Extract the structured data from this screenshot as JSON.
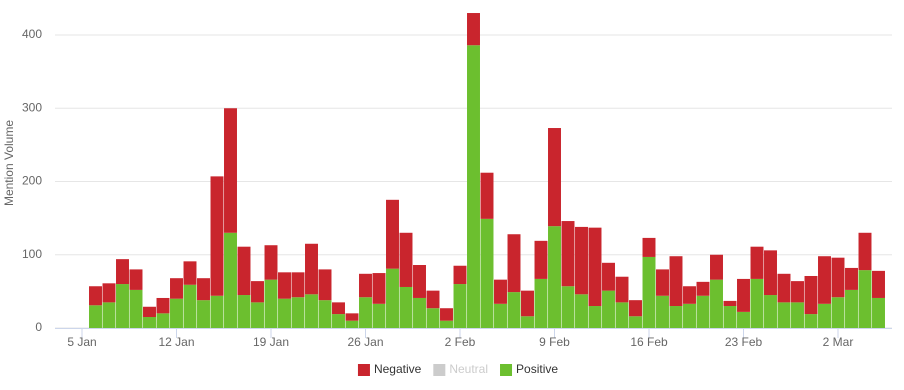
{
  "chart_data": {
    "type": "stacked-bar",
    "y_label": "Mention Volume",
    "x": [
      "6 Jan",
      "7 Jan",
      "8 Jan",
      "9 Jan",
      "10 Jan",
      "11 Jan",
      "12 Jan",
      "13 Jan",
      "14 Jan",
      "15 Jan",
      "16 Jan",
      "17 Jan",
      "18 Jan",
      "19 Jan",
      "20 Jan",
      "21 Jan",
      "22 Jan",
      "23 Jan",
      "24 Jan",
      "25 Jan",
      "26 Jan",
      "27 Jan",
      "28 Jan",
      "29 Jan",
      "30 Jan",
      "31 Jan",
      "1 Feb",
      "2 Feb",
      "3 Feb",
      "4 Feb",
      "5 Feb",
      "6 Feb",
      "7 Feb",
      "8 Feb",
      "9 Feb",
      "10 Feb",
      "11 Feb",
      "12 Feb",
      "13 Feb",
      "14 Feb",
      "15 Feb",
      "16 Feb",
      "17 Feb",
      "18 Feb",
      "19 Feb",
      "20 Feb",
      "21 Feb",
      "22 Feb",
      "23 Feb",
      "24 Feb",
      "25 Feb",
      "26 Feb",
      "27 Feb",
      "28 Feb",
      "1 Mar",
      "2 Mar",
      "3 Mar",
      "4 Mar",
      "5 Mar"
    ],
    "xlim": [
      "3 Jan",
      "6 Mar"
    ],
    "xticks": [
      "5 Jan",
      "12 Jan",
      "19 Jan",
      "26 Jan",
      "2 Feb",
      "9 Feb",
      "16 Feb",
      "23 Feb",
      "2 Mar"
    ],
    "ylim": [
      0,
      440
    ],
    "yticks": [
      0,
      100,
      200,
      300,
      400
    ],
    "grid": true,
    "legend": "bottom",
    "series": [
      {
        "name": "Negative",
        "color": "#c9252d",
        "visible": true,
        "values": [
          26,
          26,
          34,
          28,
          14,
          21,
          28,
          32,
          30,
          163,
          170,
          66,
          29,
          47,
          36,
          34,
          69,
          42,
          16,
          10,
          32,
          42,
          94,
          74,
          45,
          24,
          17,
          25,
          44,
          63,
          33,
          79,
          35,
          52,
          134,
          89,
          92,
          107,
          38,
          35,
          22,
          26,
          36,
          68,
          24,
          19,
          34,
          7,
          45,
          44,
          61,
          39,
          29,
          52,
          65,
          54,
          30,
          51,
          37
        ]
      },
      {
        "name": "Neutral",
        "color": "#cccccc",
        "visible": false,
        "values": [
          null,
          null,
          null,
          null,
          null,
          null,
          null,
          null,
          null,
          null,
          null,
          null,
          null,
          null,
          null,
          null,
          null,
          null,
          null,
          null,
          null,
          null,
          null,
          null,
          null,
          null,
          null,
          null,
          null,
          null,
          null,
          null,
          null,
          null,
          null,
          null,
          null,
          null,
          null,
          null,
          null,
          null,
          null,
          null,
          null,
          null,
          null,
          null,
          null,
          null,
          null,
          null,
          null,
          null,
          null,
          null,
          null,
          null,
          null
        ]
      },
      {
        "name": "Positive",
        "color": "#6cbf2f",
        "visible": true,
        "values": [
          31,
          35,
          60,
          52,
          15,
          20,
          40,
          59,
          38,
          44,
          130,
          45,
          35,
          66,
          40,
          42,
          46,
          38,
          19,
          10,
          42,
          33,
          81,
          56,
          41,
          27,
          10,
          60,
          386,
          149,
          33,
          49,
          16,
          67,
          139,
          57,
          46,
          30,
          51,
          35,
          16,
          97,
          44,
          30,
          33,
          44,
          66,
          30,
          22,
          67,
          45,
          35,
          35,
          19,
          33,
          42,
          52,
          79,
          41
        ]
      }
    ]
  }
}
